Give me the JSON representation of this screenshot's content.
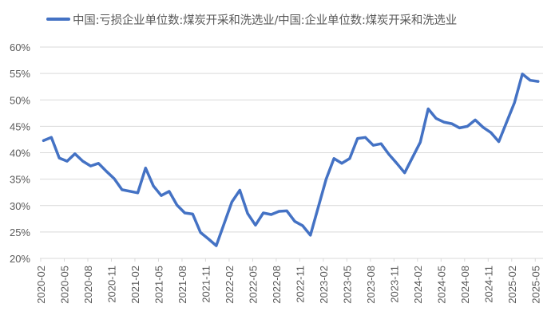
{
  "chart_data": {
    "type": "line",
    "title": "",
    "xlabel": "",
    "ylabel": "",
    "ylim": [
      0.2,
      0.6
    ],
    "yticks": [
      "20%",
      "25%",
      "30%",
      "35%",
      "40%",
      "45%",
      "50%",
      "55%",
      "60%"
    ],
    "ytick_values": [
      0.2,
      0.25,
      0.3,
      0.35,
      0.4,
      0.45,
      0.5,
      0.55,
      0.6
    ],
    "xtick_labels": [
      "2020-02",
      "2020-05",
      "2020-08",
      "2020-11",
      "2021-02",
      "2021-05",
      "2021-08",
      "2021-11",
      "2022-02",
      "2022-05",
      "2022-08",
      "2022-11",
      "2023-02",
      "2023-05",
      "2023-08",
      "2023-11",
      "2024-02",
      "2024-05",
      "2024-08",
      "2024-11",
      "2025-02",
      "2025-05"
    ],
    "grid": true,
    "legend_position": "top",
    "series": [
      {
        "name": "中国:亏损企业单位数:煤炭开采和洗选业/中国:企业单位数:煤炭开采和洗选业",
        "color": "#4472C4",
        "x": [
          "2020-02",
          "2020-03",
          "2020-04",
          "2020-05",
          "2020-06",
          "2020-07",
          "2020-08",
          "2020-09",
          "2020-10",
          "2020-11",
          "2020-12",
          "2021-02",
          "2021-03",
          "2021-04",
          "2021-05",
          "2021-06",
          "2021-07",
          "2021-08",
          "2021-09",
          "2021-10",
          "2021-11",
          "2021-12",
          "2022-02",
          "2022-03",
          "2022-04",
          "2022-05",
          "2022-06",
          "2022-07",
          "2022-08",
          "2022-09",
          "2022-10",
          "2022-11",
          "2022-12",
          "2023-02",
          "2023-03",
          "2023-04",
          "2023-05",
          "2023-06",
          "2023-07",
          "2023-08",
          "2023-09",
          "2023-10",
          "2023-11",
          "2023-12",
          "2024-02",
          "2024-03",
          "2024-04",
          "2024-05",
          "2024-06",
          "2024-07",
          "2024-08",
          "2024-09",
          "2024-10",
          "2024-11",
          "2024-12",
          "2025-02",
          "2025-03",
          "2025-04",
          "2025-05"
        ],
        "values": [
          0.423,
          0.429,
          0.39,
          0.384,
          0.398,
          0.384,
          0.375,
          0.38,
          0.365,
          0.351,
          0.33,
          0.324,
          0.371,
          0.337,
          0.319,
          0.327,
          0.301,
          0.286,
          0.284,
          0.249,
          0.237,
          0.224,
          0.307,
          0.329,
          0.285,
          0.263,
          0.286,
          0.283,
          0.289,
          0.29,
          0.27,
          0.262,
          0.244,
          0.35,
          0.389,
          0.38,
          0.389,
          0.427,
          0.429,
          0.414,
          0.417,
          0.397,
          0.38,
          0.362,
          0.42,
          0.483,
          0.465,
          0.458,
          0.455,
          0.447,
          0.45,
          0.462,
          0.448,
          0.438,
          0.421,
          0.495,
          0.549,
          0.537,
          0.535
        ]
      }
    ]
  },
  "legend": {
    "label": "中国:亏损企业单位数:煤炭开采和洗选业/中国:企业单位数:煤炭开采和洗选业"
  }
}
